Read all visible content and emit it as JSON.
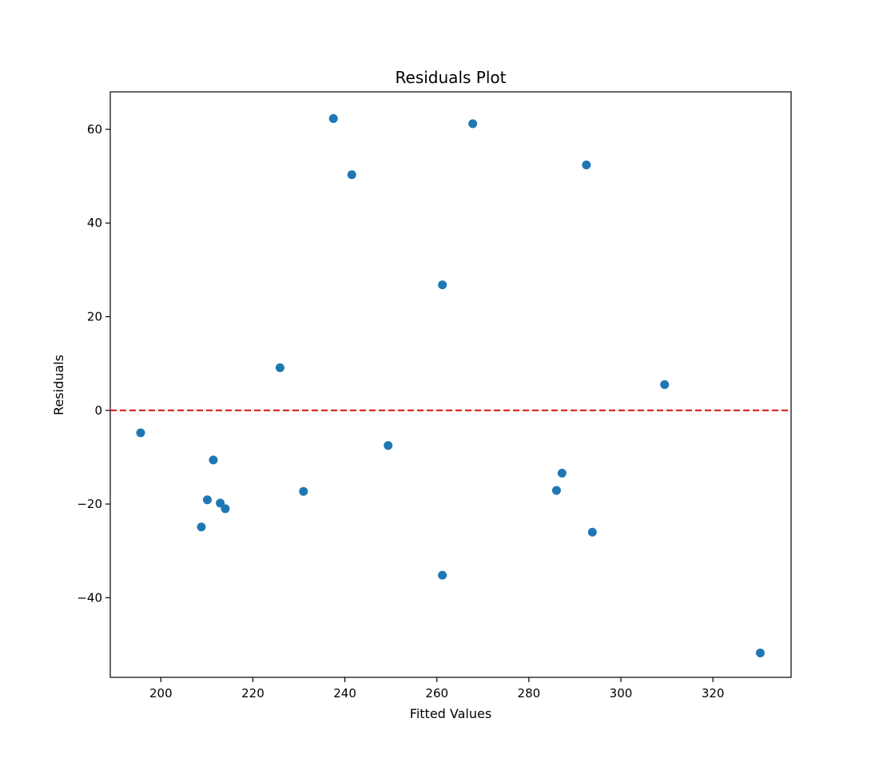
{
  "chart_data": {
    "type": "scatter",
    "title": "Residuals Plot",
    "xlabel": "Fitted Values",
    "ylabel": "Residuals",
    "xlim": [
      189,
      337
    ],
    "ylim": [
      -57,
      68
    ],
    "xticks": [
      200,
      220,
      240,
      260,
      280,
      300,
      320
    ],
    "yticks": [
      -40,
      -20,
      0,
      20,
      40,
      60
    ],
    "ytick_labels": [
      "−40",
      "−20",
      "0",
      "20",
      "40",
      "60"
    ],
    "grid": false,
    "reference_line": {
      "y": 0,
      "color": "#d62728",
      "style": "dashed"
    },
    "marker_color": "#1f77b4",
    "points": [
      {
        "x": 195.6,
        "y": -4.8
      },
      {
        "x": 208.8,
        "y": -24.9
      },
      {
        "x": 210.1,
        "y": -19.1
      },
      {
        "x": 211.4,
        "y": -10.6
      },
      {
        "x": 212.9,
        "y": -19.8
      },
      {
        "x": 214.0,
        "y": -21.0
      },
      {
        "x": 225.9,
        "y": 9.1
      },
      {
        "x": 231.0,
        "y": -17.3
      },
      {
        "x": 237.5,
        "y": 62.3
      },
      {
        "x": 241.5,
        "y": 50.3
      },
      {
        "x": 249.4,
        "y": -7.5
      },
      {
        "x": 261.2,
        "y": 26.8
      },
      {
        "x": 261.2,
        "y": -35.2
      },
      {
        "x": 267.8,
        "y": 61.2
      },
      {
        "x": 286.0,
        "y": -17.1
      },
      {
        "x": 287.2,
        "y": -13.4
      },
      {
        "x": 292.5,
        "y": 52.4
      },
      {
        "x": 293.8,
        "y": -26.0
      },
      {
        "x": 309.5,
        "y": 5.5
      },
      {
        "x": 330.3,
        "y": -51.8
      }
    ]
  }
}
